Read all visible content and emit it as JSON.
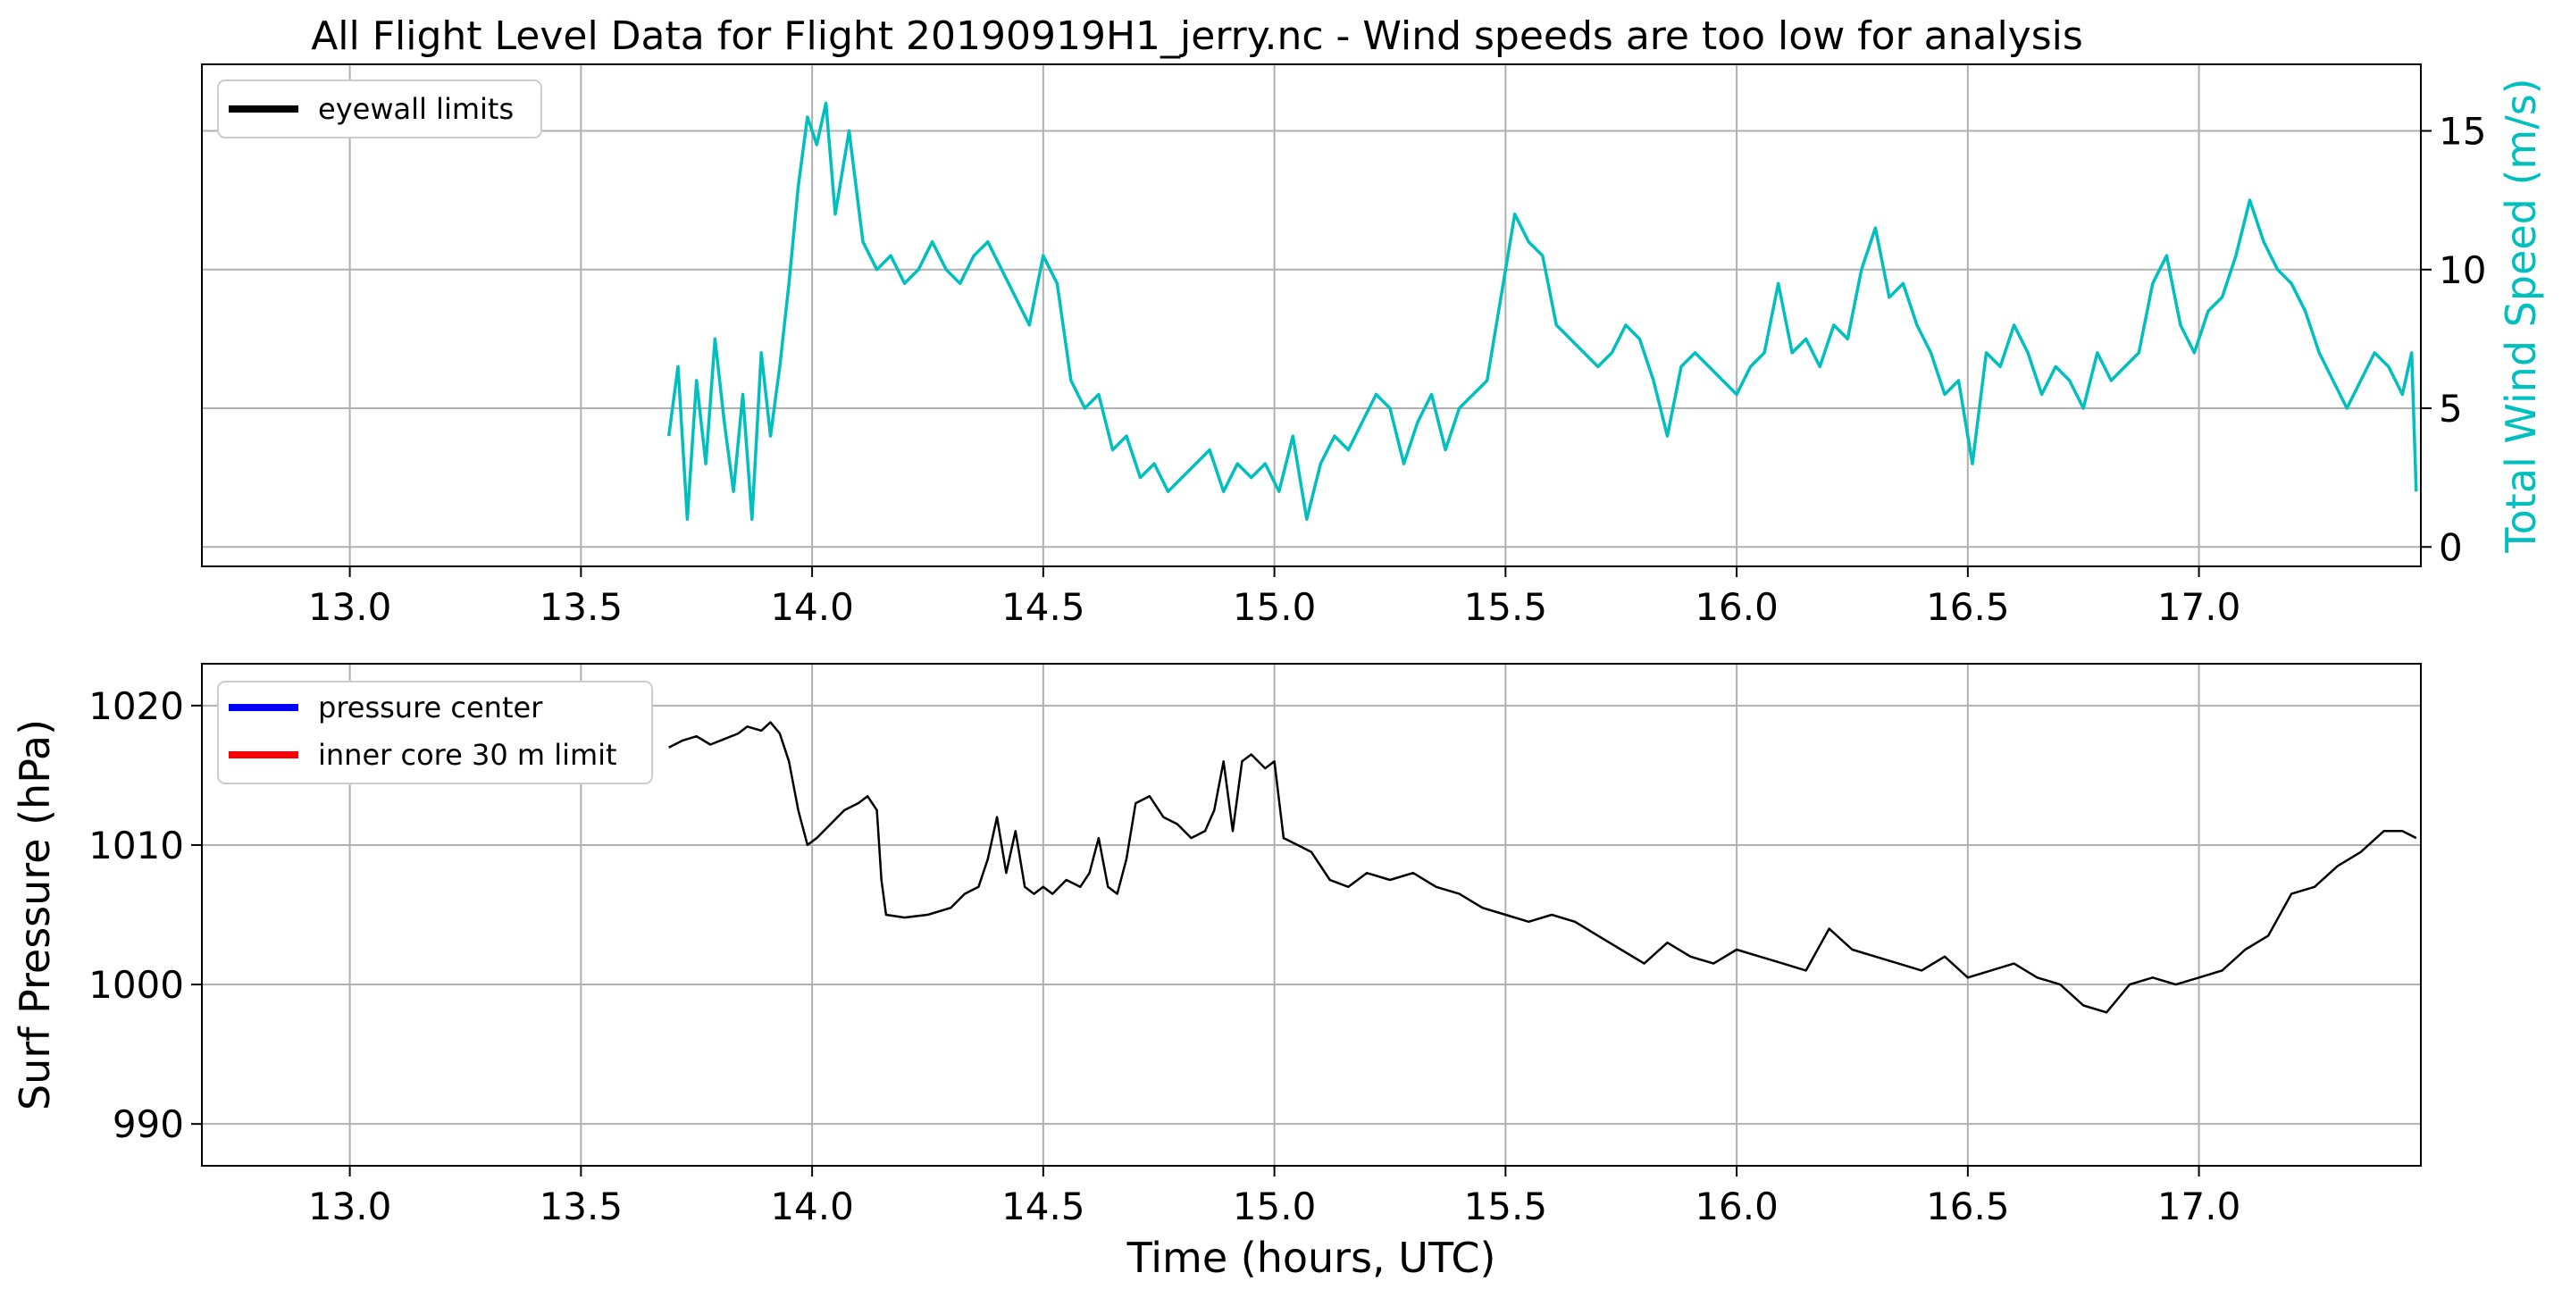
{
  "chart_data": [
    {
      "type": "line",
      "title": "All Flight Level Data for Flight 20190919H1_jerry.nc - Wind speeds are too low for analysis",
      "xlabel": "",
      "ylabel": "Total Wind Speed (m/s)",
      "ylabel_side": "right",
      "xlim": [
        12.68,
        17.48
      ],
      "ylim": [
        -0.7,
        17.4
      ],
      "x_ticks": [
        13.0,
        13.5,
        14.0,
        14.5,
        15.0,
        15.5,
        16.0,
        16.5,
        17.0
      ],
      "x_tick_labels": [
        "13.0",
        "13.5",
        "14.0",
        "14.5",
        "15.0",
        "15.5",
        "16.0",
        "16.5",
        "17.0"
      ],
      "y_ticks": [
        0,
        5,
        10,
        15
      ],
      "y_tick_labels": [
        "0",
        "5",
        "10",
        "15"
      ],
      "grid": true,
      "legend": {
        "position": "upper-left",
        "entries": [
          {
            "label": "eyewall limits",
            "color": "#000000"
          }
        ]
      },
      "series": [
        {
          "color": "#00bfbf",
          "x": [
            13.69,
            13.71,
            13.73,
            13.75,
            13.77,
            13.79,
            13.81,
            13.83,
            13.85,
            13.87,
            13.89,
            13.91,
            13.93,
            13.95,
            13.97,
            13.99,
            14.01,
            14.03,
            14.05,
            14.08,
            14.11,
            14.14,
            14.17,
            14.2,
            14.23,
            14.26,
            14.29,
            14.32,
            14.35,
            14.38,
            14.41,
            14.44,
            14.47,
            14.5,
            14.53,
            14.56,
            14.59,
            14.62,
            14.65,
            14.68,
            14.71,
            14.74,
            14.77,
            14.8,
            14.83,
            14.86,
            14.89,
            14.92,
            14.95,
            14.98,
            15.01,
            15.04,
            15.07,
            15.1,
            15.13,
            15.16,
            15.19,
            15.22,
            15.25,
            15.28,
            15.31,
            15.34,
            15.37,
            15.4,
            15.43,
            15.46,
            15.48,
            15.5,
            15.52,
            15.55,
            15.58,
            15.61,
            15.64,
            15.67,
            15.7,
            15.73,
            15.76,
            15.79,
            15.82,
            15.85,
            15.88,
            15.91,
            15.94,
            15.97,
            16.0,
            16.03,
            16.06,
            16.09,
            16.12,
            16.15,
            16.18,
            16.21,
            16.24,
            16.27,
            16.3,
            16.33,
            16.36,
            16.39,
            16.42,
            16.45,
            16.48,
            16.51,
            16.54,
            16.57,
            16.6,
            16.63,
            16.66,
            16.69,
            16.72,
            16.75,
            16.78,
            16.81,
            16.84,
            16.87,
            16.9,
            16.93,
            16.96,
            16.99,
            17.02,
            17.05,
            17.08,
            17.11,
            17.14,
            17.17,
            17.2,
            17.23,
            17.26,
            17.29,
            17.32,
            17.35,
            17.38,
            17.41,
            17.44,
            17.46,
            17.47
          ],
          "y": [
            4.0,
            6.5,
            1.0,
            6.0,
            3.0,
            7.5,
            4.5,
            2.0,
            5.5,
            1.0,
            7.0,
            4.0,
            6.5,
            9.5,
            13.0,
            15.5,
            14.5,
            16.0,
            12.0,
            15.0,
            11.0,
            10.0,
            10.5,
            9.5,
            10.0,
            11.0,
            10.0,
            9.5,
            10.5,
            11.0,
            10.0,
            9.0,
            8.0,
            10.5,
            9.5,
            6.0,
            5.0,
            5.5,
            3.5,
            4.0,
            2.5,
            3.0,
            2.0,
            2.5,
            3.0,
            3.5,
            2.0,
            3.0,
            2.5,
            3.0,
            2.0,
            4.0,
            1.0,
            3.0,
            4.0,
            3.5,
            4.5,
            5.5,
            5.0,
            3.0,
            4.5,
            5.5,
            3.5,
            5.0,
            5.5,
            6.0,
            8.0,
            10.0,
            12.0,
            11.0,
            10.5,
            8.0,
            7.5,
            7.0,
            6.5,
            7.0,
            8.0,
            7.5,
            6.0,
            4.0,
            6.5,
            7.0,
            6.5,
            6.0,
            5.5,
            6.5,
            7.0,
            9.5,
            7.0,
            7.5,
            6.5,
            8.0,
            7.5,
            10.0,
            11.5,
            9.0,
            9.5,
            8.0,
            7.0,
            5.5,
            6.0,
            3.0,
            7.0,
            6.5,
            8.0,
            7.0,
            5.5,
            6.5,
            6.0,
            5.0,
            7.0,
            6.0,
            6.5,
            7.0,
            9.5,
            10.5,
            8.0,
            7.0,
            8.5,
            9.0,
            10.5,
            12.5,
            11.0,
            10.0,
            9.5,
            8.5,
            7.0,
            6.0,
            5.0,
            6.0,
            7.0,
            6.5,
            5.5,
            7.0,
            2.0
          ]
        }
      ]
    },
    {
      "type": "line",
      "title": "",
      "xlabel": "Time (hours, UTC)",
      "ylabel": "Surf Pressure (hPa)",
      "ylabel_side": "left",
      "xlim": [
        12.68,
        17.48
      ],
      "ylim": [
        987.0,
        1023.0
      ],
      "x_ticks": [
        13.0,
        13.5,
        14.0,
        14.5,
        15.0,
        15.5,
        16.0,
        16.5,
        17.0
      ],
      "x_tick_labels": [
        "13.0",
        "13.5",
        "14.0",
        "14.5",
        "15.0",
        "15.5",
        "16.0",
        "16.5",
        "17.0"
      ],
      "y_ticks": [
        990,
        1000,
        1010,
        1020
      ],
      "y_tick_labels": [
        "990",
        "1000",
        "1010",
        "1020"
      ],
      "grid": true,
      "legend": {
        "position": "upper-left",
        "entries": [
          {
            "label": "pressure center",
            "color": "#0000ff"
          },
          {
            "label": "inner core 30 m limit",
            "color": "#ff0000"
          }
        ]
      },
      "series": [
        {
          "color": "#000000",
          "x": [
            13.69,
            13.72,
            13.75,
            13.78,
            13.81,
            13.84,
            13.86,
            13.89,
            13.91,
            13.93,
            13.95,
            13.97,
            13.99,
            14.01,
            14.04,
            14.07,
            14.1,
            14.12,
            14.14,
            14.15,
            14.16,
            14.2,
            14.25,
            14.3,
            14.33,
            14.36,
            14.38,
            14.4,
            14.42,
            14.44,
            14.46,
            14.48,
            14.5,
            14.52,
            14.55,
            14.58,
            14.6,
            14.62,
            14.64,
            14.66,
            14.68,
            14.7,
            14.73,
            14.76,
            14.79,
            14.82,
            14.85,
            14.87,
            14.89,
            14.91,
            14.93,
            14.95,
            14.98,
            15.0,
            15.02,
            15.05,
            15.08,
            15.12,
            15.16,
            15.2,
            15.25,
            15.3,
            15.35,
            15.4,
            15.45,
            15.5,
            15.55,
            15.6,
            15.65,
            15.7,
            15.75,
            15.8,
            15.85,
            15.9,
            15.95,
            16.0,
            16.05,
            16.1,
            16.15,
            16.2,
            16.25,
            16.3,
            16.35,
            16.4,
            16.45,
            16.5,
            16.55,
            16.6,
            16.65,
            16.7,
            16.75,
            16.8,
            16.85,
            16.9,
            16.95,
            17.0,
            17.05,
            17.1,
            17.15,
            17.2,
            17.25,
            17.3,
            17.35,
            17.4,
            17.44,
            17.47
          ],
          "y": [
            1017.0,
            1017.5,
            1017.8,
            1017.2,
            1017.6,
            1018.0,
            1018.5,
            1018.2,
            1018.8,
            1018.0,
            1016.0,
            1012.5,
            1010.0,
            1010.5,
            1011.5,
            1012.5,
            1013.0,
            1013.5,
            1012.5,
            1007.5,
            1005.0,
            1004.8,
            1005.0,
            1005.5,
            1006.5,
            1007.0,
            1009.0,
            1012.0,
            1008.0,
            1011.0,
            1007.0,
            1006.5,
            1007.0,
            1006.5,
            1007.5,
            1007.0,
            1008.0,
            1010.5,
            1007.0,
            1006.5,
            1009.0,
            1013.0,
            1013.5,
            1012.0,
            1011.5,
            1010.5,
            1011.0,
            1012.5,
            1016.0,
            1011.0,
            1016.0,
            1016.5,
            1015.5,
            1016.0,
            1010.5,
            1010.0,
            1009.5,
            1007.5,
            1007.0,
            1008.0,
            1007.5,
            1008.0,
            1007.0,
            1006.5,
            1005.5,
            1005.0,
            1004.5,
            1005.0,
            1004.5,
            1003.5,
            1002.5,
            1001.5,
            1003.0,
            1002.0,
            1001.5,
            1002.5,
            1002.0,
            1001.5,
            1001.0,
            1004.0,
            1002.5,
            1002.0,
            1001.5,
            1001.0,
            1002.0,
            1000.5,
            1001.0,
            1001.5,
            1000.5,
            1000.0,
            998.5,
            998.0,
            1000.0,
            1000.5,
            1000.0,
            1000.5,
            1001.0,
            1002.5,
            1003.5,
            1006.5,
            1007.0,
            1008.5,
            1009.5,
            1011.0,
            1011.0,
            1010.5
          ]
        }
      ]
    }
  ]
}
